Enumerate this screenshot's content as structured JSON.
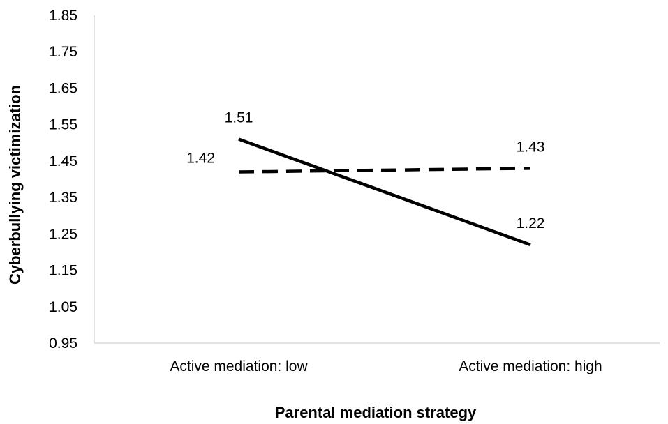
{
  "chart_data": {
    "type": "line",
    "title": "",
    "xlabel": "Parental mediation strategy",
    "ylabel": "Cyberbullying victimization",
    "categories": [
      "Active mediation: low",
      "Active mediation: high"
    ],
    "ylim": [
      0.95,
      1.85
    ],
    "yticks": [
      "0.95",
      "1.05",
      "1.15",
      "1.25",
      "1.35",
      "1.45",
      "1.55",
      "1.65",
      "1.75",
      "1.85"
    ],
    "grid": false,
    "legend": "none",
    "series": [
      {
        "style": "solid",
        "color": "#000000",
        "values": [
          1.51,
          1.22
        ],
        "labels": [
          "1.51",
          "1.22"
        ]
      },
      {
        "style": "dashed",
        "color": "#000000",
        "values": [
          1.42,
          1.43
        ],
        "labels": [
          "1.42",
          "1.43"
        ]
      }
    ]
  }
}
